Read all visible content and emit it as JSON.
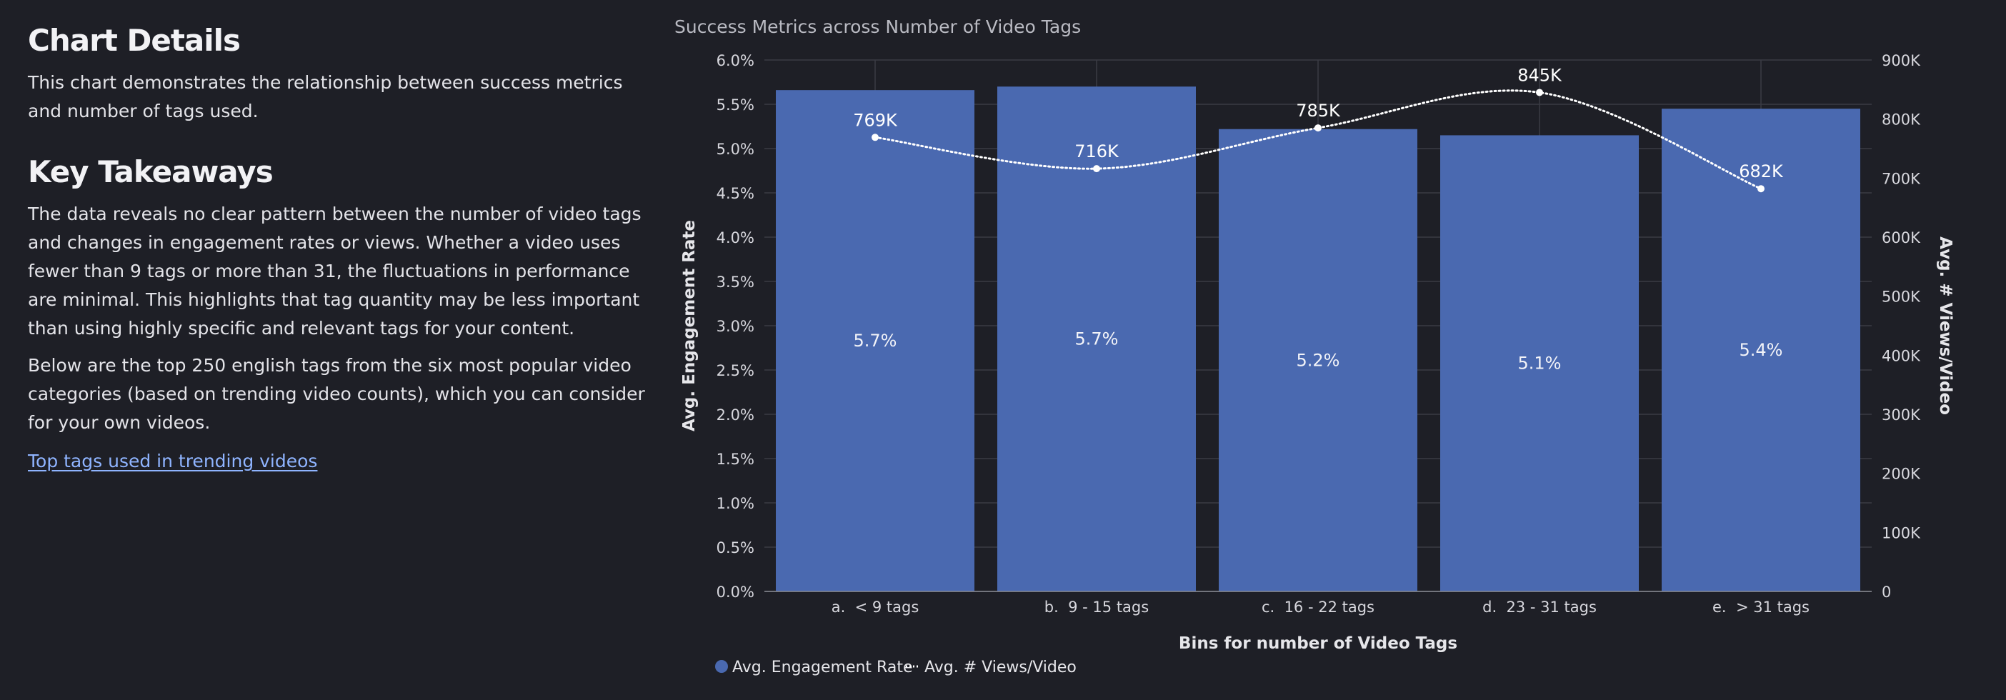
{
  "panel": {
    "chart_details_title": "Chart Details",
    "chart_details_text": "This chart demonstrates the relationship between success metrics and number of tags used.",
    "takeaways_title": "Key Takeaways",
    "takeaways_p1": "The data reveals no clear pattern between the number of video tags and changes in engagement rates or views. Whether a video uses fewer than 9 tags or more than 31, the fluctuations in performance are minimal. This highlights that tag quantity may be less important than using highly specific and relevant tags for your content.",
    "takeaways_p2": "Below are the top 250 english tags from the six most popular video categories (based on trending video counts), which you can consider for your own videos.",
    "link_text": "Top tags used in trending videos"
  },
  "colors": {
    "background": "#1e1f26",
    "bar": "#4a69b0",
    "line": "#ffffff",
    "grid": "#3a3b44",
    "link": "#8fb4ff"
  },
  "chart_data": {
    "type": "bar",
    "title": "Success Metrics across Number of Video Tags",
    "xlabel": "Bins for number of Video Tags",
    "ylabel": "Avg. Engagement Rate",
    "y2label": "Avg. # Views/Video",
    "categories": [
      "a.  < 9 tags",
      "b.  9 - 15 tags",
      "c.  16 - 22 tags",
      "d.  23 - 31 tags",
      "e.  > 31 tags"
    ],
    "ylim": [
      0,
      6.0
    ],
    "yticks": [
      "0.0%",
      "0.5%",
      "1.0%",
      "1.5%",
      "2.0%",
      "2.5%",
      "3.0%",
      "3.5%",
      "4.0%",
      "4.5%",
      "5.0%",
      "5.5%",
      "6.0%"
    ],
    "y2lim": [
      0,
      900000
    ],
    "y2ticks": [
      "0",
      "100K",
      "200K",
      "300K",
      "400K",
      "500K",
      "600K",
      "700K",
      "800K",
      "900K"
    ],
    "series": [
      {
        "name": "Avg. Engagement Rate",
        "kind": "bar",
        "axis": "left",
        "values": [
          5.66,
          5.7,
          5.22,
          5.15,
          5.45
        ],
        "labels": [
          "5.7%",
          "5.7%",
          "5.2%",
          "5.1%",
          "5.4%"
        ]
      },
      {
        "name": "Avg. # Views/Video",
        "kind": "line",
        "style": "dotted",
        "axis": "right",
        "values": [
          769000,
          716000,
          785000,
          845000,
          682000
        ],
        "labels": [
          "769K",
          "716K",
          "785K",
          "845K",
          "682K"
        ]
      }
    ],
    "grid": true,
    "legend": "bottom-left"
  }
}
